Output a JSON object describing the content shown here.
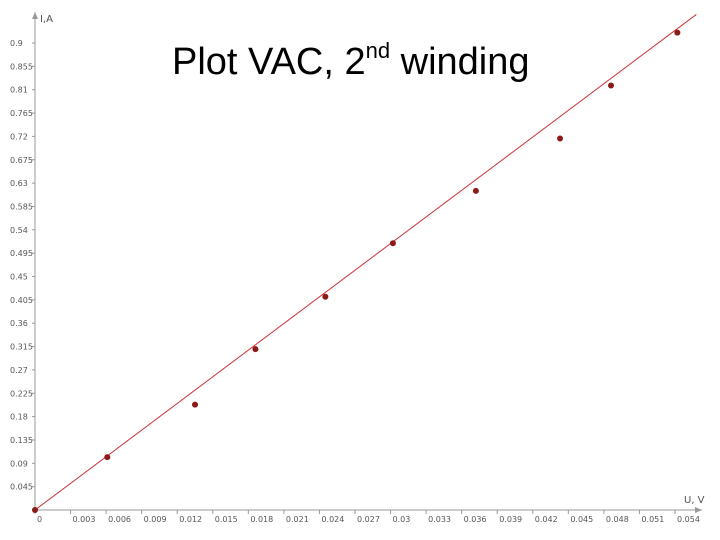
{
  "chart_data": {
    "type": "scatter",
    "title": "Plot VAC, 2",
    "title_superscript": "nd",
    "title_suffix": " winding",
    "xlabel": "U, V",
    "ylabel": "I,A",
    "xlim": [
      0,
      0.054
    ],
    "ylim": [
      0,
      0.9
    ],
    "xticks": [
      "0",
      "0.003",
      "0.006",
      "0.009",
      "0.012",
      "0.015",
      "0.018",
      "0.021",
      "0.024",
      "0.027",
      "0.03",
      "0.033",
      "0.036",
      "0.039",
      "0.042",
      "0.045",
      "0.048",
      "0.051",
      "0.054"
    ],
    "yticks": [
      "0.9",
      "0.855",
      "0.81",
      "0.765",
      "0.72",
      "0.675",
      "0.63",
      "0.585",
      "0.54",
      "0.495",
      "0.45",
      "0.405",
      "0.36",
      "0.315",
      "0.27",
      "0.225",
      "0.18",
      "0.135",
      "0.09",
      "0.045"
    ],
    "grid": false,
    "points": [
      {
        "x": 0.0,
        "y": 0.0
      },
      {
        "x": 0.0061,
        "y": 0.102
      },
      {
        "x": 0.0135,
        "y": 0.203
      },
      {
        "x": 0.0186,
        "y": 0.31
      },
      {
        "x": 0.0245,
        "y": 0.411
      },
      {
        "x": 0.0302,
        "y": 0.514
      },
      {
        "x": 0.0372,
        "y": 0.615
      },
      {
        "x": 0.0443,
        "y": 0.716
      },
      {
        "x": 0.0486,
        "y": 0.818
      },
      {
        "x": 0.0542,
        "y": 0.92
      }
    ],
    "fit_line": {
      "x0": 0.0,
      "y0": 0.0,
      "x1": 0.0558,
      "y1": 0.955
    },
    "colors": {
      "marker": "#8b1a1a",
      "fit_line": "#cc3333",
      "axis": "#999999"
    }
  }
}
